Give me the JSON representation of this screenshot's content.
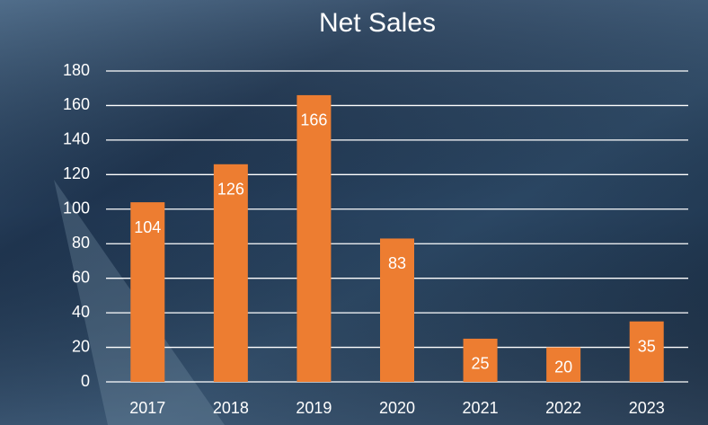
{
  "chart_data": {
    "type": "bar",
    "title": "Net Sales",
    "categories": [
      "2017",
      "2018",
      "2019",
      "2020",
      "2021",
      "2022",
      "2023"
    ],
    "values": [
      104,
      126,
      166,
      83,
      25,
      20,
      35
    ],
    "color": "#ed7d31",
    "ylim": [
      0,
      180
    ],
    "yticks": [
      0,
      20,
      40,
      60,
      80,
      100,
      120,
      140,
      160,
      180
    ],
    "grid": true
  }
}
